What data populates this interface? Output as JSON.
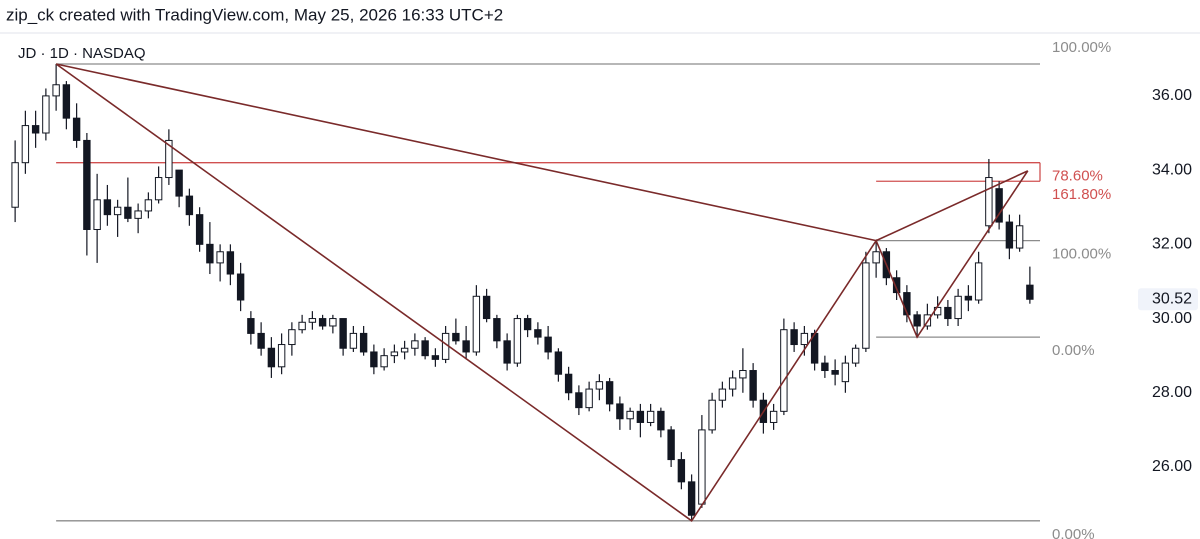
{
  "header": "zip_ck created with TradingView.com, May 25, 2026 16:33 UTC+2",
  "chart_data": {
    "type": "candlestick",
    "title": "JD · 1D · NASDAQ",
    "ylim": [
      24.06,
      37.56
    ],
    "yticks": [
      {
        "value": 26,
        "label": "26.00"
      },
      {
        "value": 28,
        "label": "28.00"
      },
      {
        "value": 30,
        "label": "30.00"
      },
      {
        "value": 32,
        "label": "32.00"
      },
      {
        "value": 34,
        "label": "34.00"
      },
      {
        "value": 36,
        "label": "36.00"
      }
    ],
    "last_price": 30.52,
    "up_color": "#ffffff",
    "down_color": "#131722",
    "edge_color": "#131722",
    "open": [
      33.0,
      34.2,
      35.2,
      35.0,
      36.0,
      36.3,
      35.4,
      34.8,
      32.4,
      33.2,
      32.8,
      33.0,
      32.7,
      32.9,
      33.2,
      33.8,
      34.0,
      33.3,
      32.8,
      32.0,
      31.5,
      31.8,
      31.2,
      30.0,
      29.6,
      29.2,
      28.7,
      29.3,
      29.7,
      29.9,
      30.0,
      29.8,
      30.0,
      29.2,
      29.6,
      29.1,
      28.7,
      29.0,
      29.1,
      29.2,
      29.4,
      29.0,
      28.9,
      29.6,
      29.4,
      29.1,
      30.6,
      30.0,
      29.4,
      28.8,
      30.0,
      29.7,
      29.5,
      29.1,
      28.5,
      28.0,
      27.6,
      28.1,
      28.3,
      27.7,
      27.3,
      27.5,
      27.2,
      27.5,
      27.0,
      26.2,
      25.6,
      25.0,
      27.0,
      27.8,
      28.1,
      28.4,
      28.6,
      27.8,
      27.2,
      27.5,
      29.7,
      29.3,
      29.6,
      28.8,
      28.6,
      28.3,
      28.8,
      29.2,
      31.5,
      31.8,
      31.1,
      30.7,
      30.1,
      29.8,
      30.1,
      30.3,
      30.0,
      30.6,
      30.5,
      32.5,
      33.5,
      32.6,
      31.9,
      30.9
    ],
    "high": [
      34.8,
      35.6,
      35.6,
      36.2,
      36.86,
      36.4,
      35.8,
      35.0,
      33.9,
      33.6,
      33.2,
      33.8,
      33.1,
      33.4,
      34.1,
      35.1,
      34.0,
      33.5,
      33.0,
      32.6,
      32.0,
      32.0,
      31.5,
      30.2,
      29.9,
      29.5,
      29.6,
      29.9,
      30.1,
      30.2,
      30.1,
      30.1,
      30.0,
      29.8,
      29.8,
      29.3,
      29.2,
      29.3,
      29.4,
      29.6,
      29.5,
      29.2,
      29.8,
      30.0,
      29.8,
      30.9,
      30.8,
      30.1,
      29.6,
      30.1,
      30.1,
      29.9,
      29.8,
      29.2,
      28.7,
      28.2,
      28.3,
      28.5,
      28.4,
      27.9,
      27.6,
      27.7,
      27.7,
      27.6,
      27.1,
      26.4,
      25.8,
      27.4,
      28.0,
      28.3,
      28.6,
      29.2,
      28.8,
      28.0,
      27.7,
      30.0,
      29.9,
      29.8,
      29.7,
      29.0,
      28.9,
      29.0,
      29.3,
      31.8,
      32.1,
      31.9,
      31.3,
      30.9,
      30.2,
      30.4,
      30.6,
      30.5,
      30.8,
      30.9,
      31.8,
      34.3,
      33.7,
      32.8,
      32.8,
      31.4
    ],
    "low": [
      32.6,
      33.9,
      34.6,
      34.8,
      35.6,
      35.1,
      34.6,
      31.7,
      31.5,
      32.5,
      32.2,
      32.6,
      32.3,
      32.7,
      33.1,
      33.6,
      33.0,
      32.5,
      31.8,
      31.2,
      31.0,
      30.9,
      30.2,
      29.3,
      29.0,
      28.4,
      28.5,
      29.0,
      29.6,
      29.7,
      29.7,
      29.6,
      29.0,
      29.1,
      29.0,
      28.5,
      28.6,
      28.8,
      28.9,
      29.0,
      28.9,
      28.7,
      28.8,
      29.3,
      28.9,
      29.0,
      29.9,
      29.2,
      28.6,
      28.7,
      29.5,
      29.3,
      28.9,
      28.3,
      27.8,
      27.4,
      27.5,
      27.8,
      27.5,
      27.0,
      27.0,
      26.8,
      27.1,
      26.8,
      26.0,
      25.4,
      24.55,
      24.9,
      26.9,
      27.6,
      27.9,
      28.0,
      27.6,
      26.9,
      27.0,
      27.4,
      29.1,
      29.0,
      28.6,
      28.4,
      28.2,
      28.0,
      28.7,
      29.1,
      31.1,
      30.9,
      30.5,
      29.9,
      29.5,
      29.7,
      30.0,
      29.8,
      29.8,
      30.2,
      30.4,
      32.3,
      32.4,
      31.6,
      31.8,
      30.4
    ],
    "close": [
      34.2,
      35.2,
      35.0,
      36.0,
      36.3,
      35.4,
      34.8,
      32.4,
      33.2,
      32.8,
      33.0,
      32.7,
      32.9,
      33.2,
      33.8,
      34.8,
      33.3,
      32.8,
      32.0,
      31.5,
      31.8,
      31.2,
      30.5,
      29.6,
      29.2,
      28.7,
      29.3,
      29.7,
      29.9,
      30.0,
      29.8,
      30.0,
      29.2,
      29.6,
      29.1,
      28.7,
      29.0,
      29.1,
      29.2,
      29.4,
      29.0,
      28.9,
      29.6,
      29.4,
      29.1,
      30.6,
      30.0,
      29.4,
      28.8,
      30.0,
      29.7,
      29.5,
      29.1,
      28.5,
      28.0,
      27.6,
      28.1,
      28.3,
      27.7,
      27.3,
      27.5,
      27.2,
      27.5,
      27.0,
      26.2,
      25.6,
      24.7,
      27.0,
      27.8,
      28.1,
      28.4,
      28.6,
      27.8,
      27.2,
      27.5,
      29.7,
      29.3,
      29.6,
      28.8,
      28.6,
      28.5,
      28.8,
      29.2,
      31.5,
      31.8,
      31.1,
      30.7,
      30.1,
      29.8,
      30.1,
      30.3,
      30.0,
      30.6,
      30.5,
      31.5,
      33.8,
      32.6,
      31.9,
      32.5,
      30.52
    ],
    "pattern": {
      "color": "#7a2a2a",
      "x": [
        4,
        66,
        84,
        88,
        98.8
      ],
      "y": [
        36.86,
        24.55,
        32.1,
        29.5,
        33.98
      ]
    },
    "fibs": [
      {
        "x_start": 4,
        "levels": [
          {
            "label": "100.00%",
            "price": 36.86,
            "color": "#8c8c8c"
          },
          {
            "label": "78.60%",
            "price": 34.2,
            "color": "#d05050"
          },
          {
            "label": "0.00%",
            "price": 24.55,
            "color": "#8c8c8c"
          }
        ]
      },
      {
        "x_start": 84,
        "levels": [
          {
            "label": "161.80%",
            "price": 33.7,
            "color": "#d05050"
          },
          {
            "label": "100.00%",
            "price": 32.1,
            "color": "#8c8c8c"
          },
          {
            "label": "0.00%",
            "price": 29.5,
            "color": "#8c8c8c"
          }
        ]
      }
    ]
  }
}
